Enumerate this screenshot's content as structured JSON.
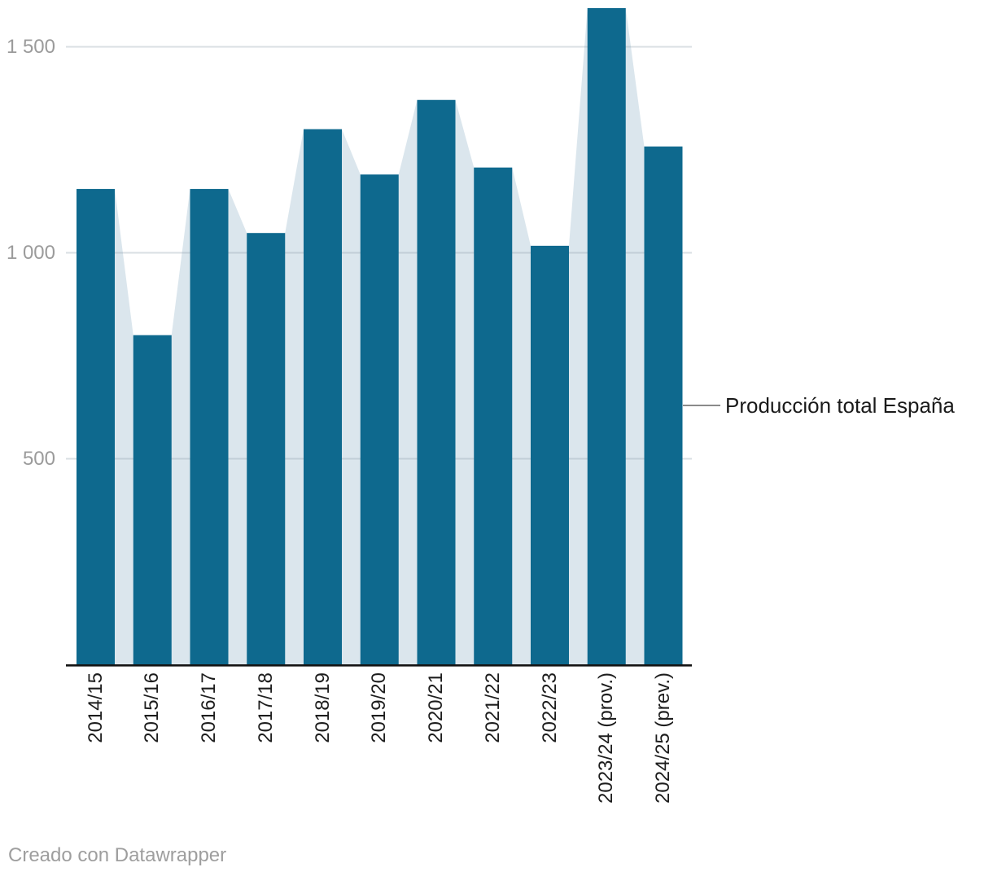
{
  "chart_data": {
    "type": "bar",
    "overlay": "area-silhouette-behind-columns",
    "categories": [
      "2014/15",
      "2015/16",
      "2016/17",
      "2017/18",
      "2018/19",
      "2019/20",
      "2020/21",
      "2021/22",
      "2022/23",
      "2023/24 (prov.)",
      "2024/25 (prev.)"
    ],
    "series": [
      {
        "name": "Producción total España",
        "values": [
          1155,
          800,
          1155,
          1048,
          1300,
          1190,
          1371,
          1207,
          1017,
          1594,
          1258
        ]
      }
    ],
    "title": "",
    "xlabel": "",
    "ylabel": "",
    "ylim": [
      0,
      1614
    ],
    "yticks": [
      {
        "value": 1500,
        "label": "1 500"
      },
      {
        "value": 1000,
        "label": "1 000"
      },
      {
        "value": 500,
        "label": "500"
      }
    ],
    "grid": "horizontal",
    "legend_position": "direct-label-right"
  },
  "annotation": {
    "series_label": "Producción total España"
  },
  "footer": {
    "credit": "Creado con Datawrapper"
  },
  "colors": {
    "bar": "#0e698e",
    "area": "#dbe6ed",
    "grid": "rgba(139,158,170,0.33)",
    "axis": "#141414",
    "y_tick_text": "#9b9b9b",
    "x_tick_text": "#1d1d1d",
    "label_text": "#1a1a1a",
    "connector": "#8a8a8a",
    "background": "#ffffff"
  }
}
